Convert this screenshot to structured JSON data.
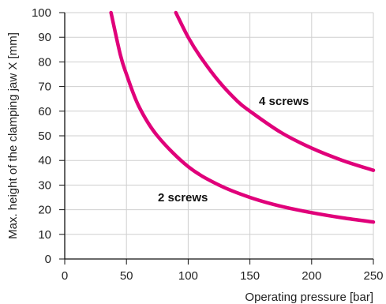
{
  "chart_data": {
    "type": "line",
    "title": "",
    "xlabel": "Operating pressure [bar]",
    "ylabel": "Max. height of the clamping jaw X [mm]",
    "xlim": [
      0,
      250
    ],
    "ylim": [
      0,
      100
    ],
    "xticks": [
      0,
      50,
      100,
      150,
      200,
      250
    ],
    "yticks": [
      0,
      10,
      20,
      30,
      40,
      50,
      60,
      70,
      80,
      90,
      100
    ],
    "grid": true,
    "legend": "none",
    "line_color": "#e0007a",
    "series": [
      {
        "name": "2 screws",
        "x": [
          37.5,
          45,
          50,
          60,
          75,
          100,
          125,
          150,
          175,
          200,
          225,
          250
        ],
        "y": [
          100,
          83,
          75,
          62,
          50,
          37.5,
          30,
          25,
          21.4,
          18.8,
          16.7,
          15
        ]
      },
      {
        "name": "4 screws",
        "x": [
          90,
          100,
          110,
          125,
          140,
          150,
          175,
          200,
          225,
          250
        ],
        "y": [
          100,
          90,
          82,
          72,
          64,
          60,
          51.4,
          45,
          40,
          36
        ]
      }
    ]
  }
}
